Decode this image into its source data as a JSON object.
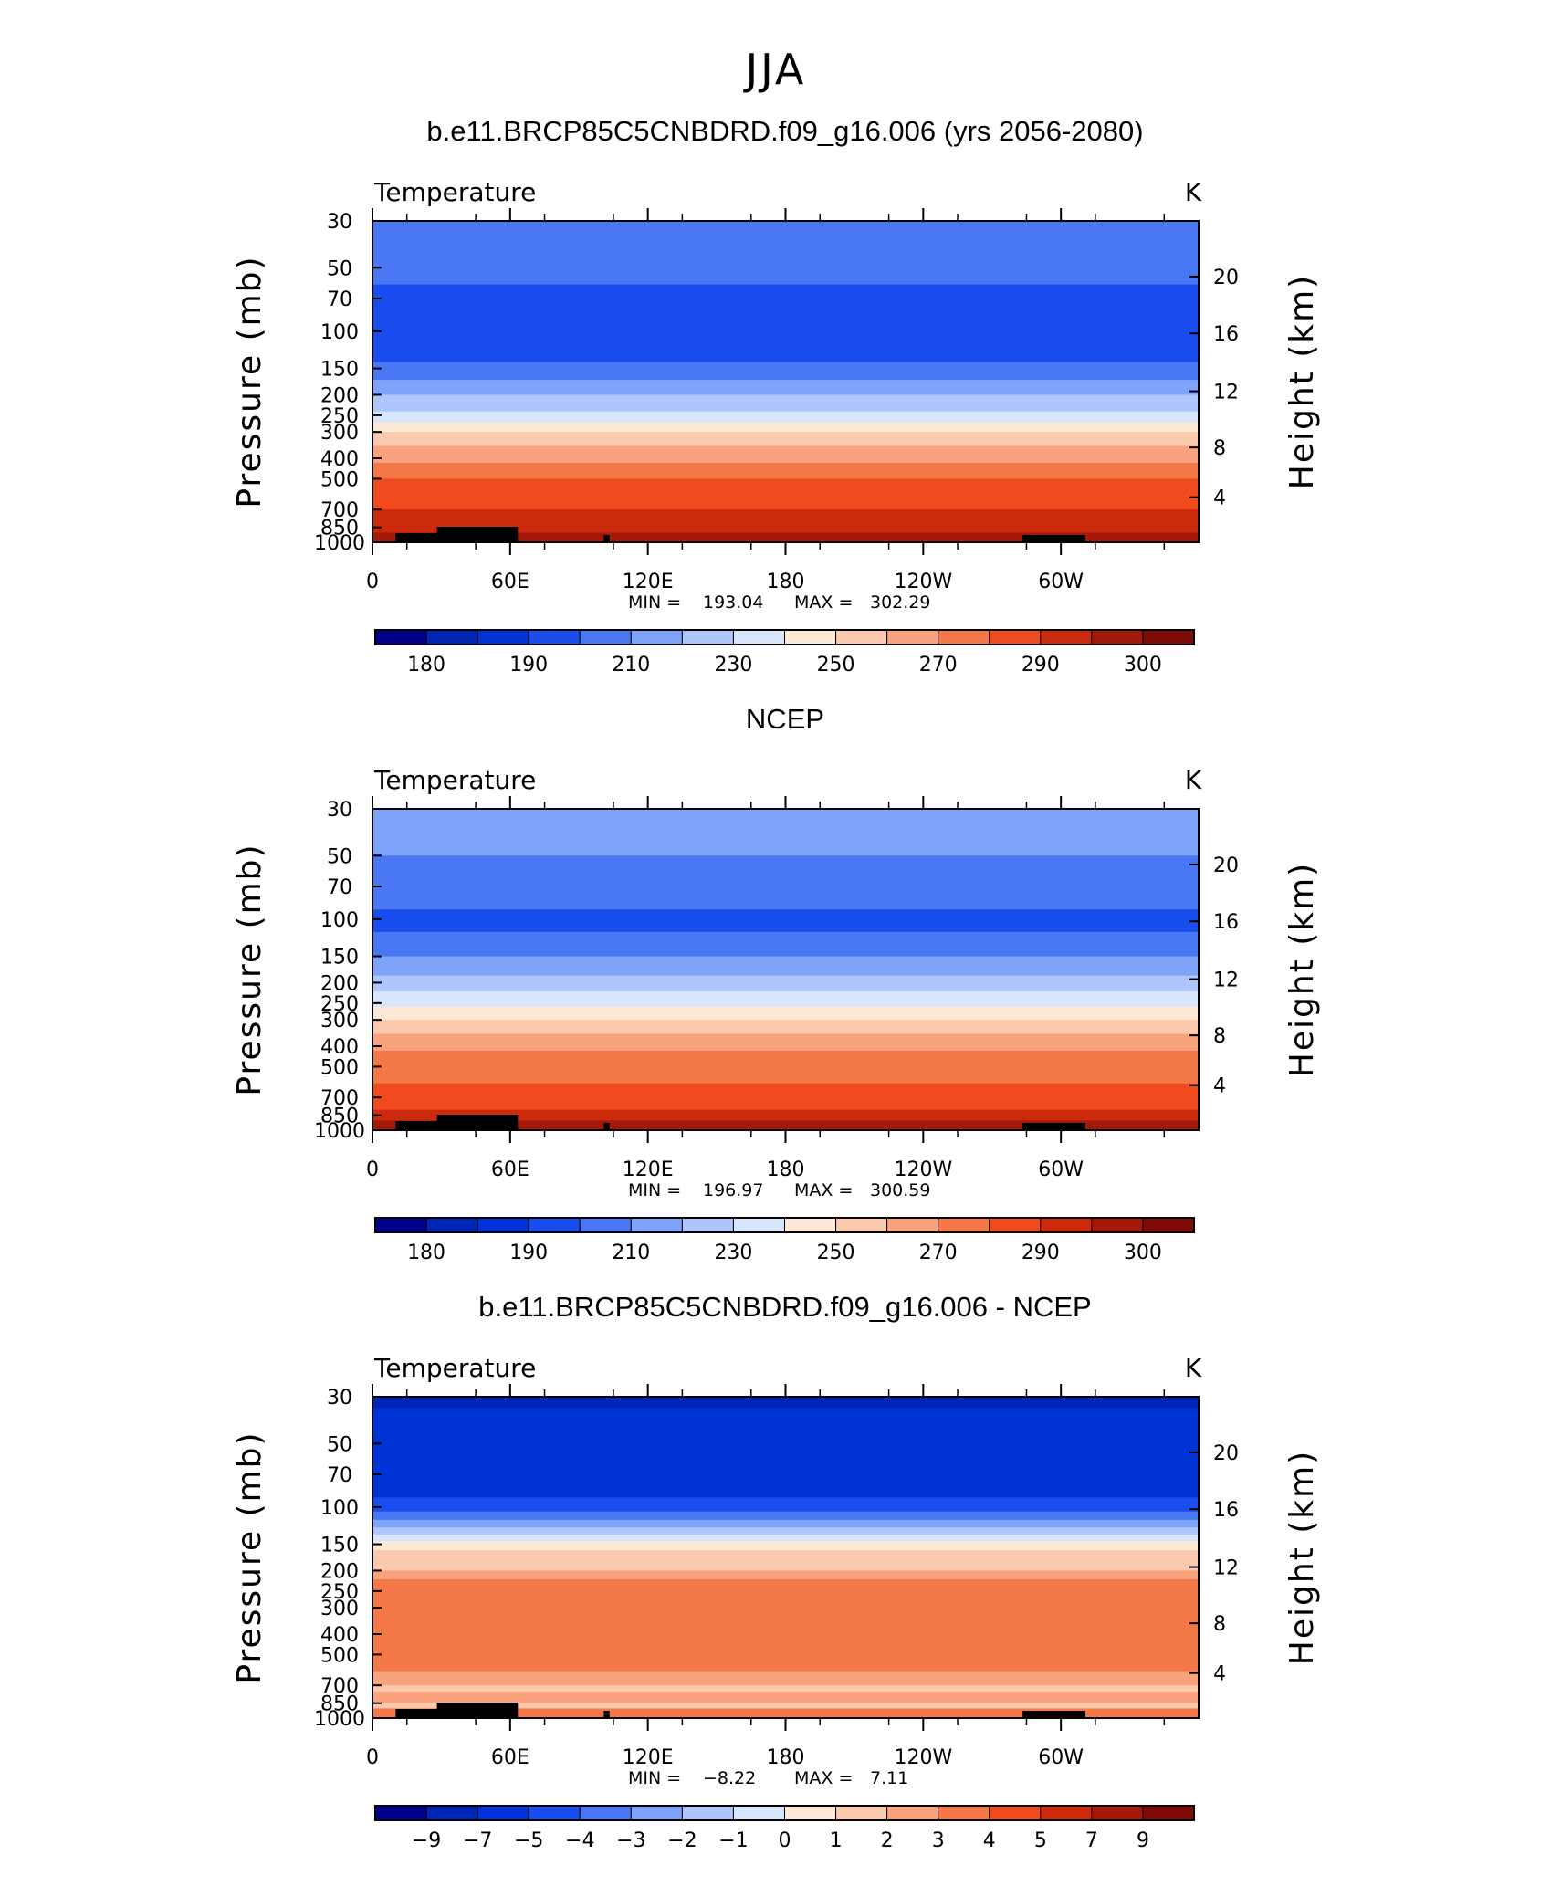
{
  "page": {
    "title": "JJA"
  },
  "chart_data": [
    {
      "type": "heatmap",
      "title": "b.e11.BRCP85C5CNBDRD.f09_g16.006 (yrs 2056-2080)",
      "variable": "Temperature",
      "units": "K",
      "ylabel": "Pressure (mb)",
      "ylabel_right": "Height (km)",
      "pressure_ticks": [
        "30",
        "50",
        "70",
        "100",
        "150",
        "200",
        "250",
        "300",
        "400",
        "500",
        "700",
        "850",
        "1000"
      ],
      "height_ticks": [
        "20",
        "16",
        "12",
        "8",
        "4"
      ],
      "lon_ticks": [
        "0",
        "60E",
        "120E",
        "180",
        "120W",
        "60W"
      ],
      "stats": {
        "min_label": "MIN =",
        "min": "193.04",
        "max_label": "MAX =",
        "max": "302.29"
      },
      "levels": [
        "180",
        "190",
        "210",
        "230",
        "250",
        "270",
        "290",
        "300"
      ],
      "palette": [
        "#00008b",
        "#0024b3",
        "#0033d6",
        "#1a4dee",
        "#4a78f5",
        "#7fa3fa",
        "#aec6fb",
        "#d7e6fc",
        "#fde9d6",
        "#fbc9ad",
        "#f8a27e",
        "#f57849",
        "#f04b1e",
        "#cc2a0c",
        "#a31a0a",
        "#7e0b08"
      ],
      "band_levels": [
        30,
        60,
        110,
        140,
        170,
        200,
        240,
        270,
        300,
        350,
        420,
        500,
        600,
        700,
        800,
        900,
        1000
      ],
      "band_colors": [
        4,
        3,
        3,
        4,
        5,
        6,
        7,
        8,
        9,
        10,
        11,
        12,
        12,
        13,
        13,
        14
      ]
    },
    {
      "type": "heatmap",
      "title": "NCEP",
      "variable": "Temperature",
      "units": "K",
      "ylabel": "Pressure (mb)",
      "ylabel_right": "Height (km)",
      "pressure_ticks": [
        "30",
        "50",
        "70",
        "100",
        "150",
        "200",
        "250",
        "300",
        "400",
        "500",
        "700",
        "850",
        "1000"
      ],
      "height_ticks": [
        "20",
        "16",
        "12",
        "8",
        "4"
      ],
      "lon_ticks": [
        "0",
        "60E",
        "120E",
        "180",
        "120W",
        "60W"
      ],
      "stats": {
        "min_label": "MIN =",
        "min": "196.97",
        "max_label": "MAX =",
        "max": "300.59"
      },
      "levels": [
        "180",
        "190",
        "210",
        "230",
        "250",
        "270",
        "290",
        "300"
      ],
      "palette": [
        "#00008b",
        "#0024b3",
        "#0033d6",
        "#1a4dee",
        "#4a78f5",
        "#7fa3fa",
        "#aec6fb",
        "#d7e6fc",
        "#fde9d6",
        "#fbc9ad",
        "#f8a27e",
        "#f57849",
        "#f04b1e",
        "#cc2a0c",
        "#a31a0a",
        "#7e0b08"
      ],
      "band_levels": [
        30,
        50,
        90,
        115,
        150,
        185,
        220,
        260,
        300,
        350,
        420,
        500,
        600,
        700,
        800,
        900,
        1000
      ],
      "band_colors": [
        5,
        4,
        3,
        4,
        5,
        6,
        7,
        8,
        9,
        10,
        11,
        11,
        12,
        12,
        13,
        14
      ]
    },
    {
      "type": "heatmap",
      "title": "b.e11.BRCP85C5CNBDRD.f09_g16.006 - NCEP",
      "variable": "Temperature",
      "units": "K",
      "ylabel": "Pressure (mb)",
      "ylabel_right": "Height (km)",
      "pressure_ticks": [
        "30",
        "50",
        "70",
        "100",
        "150",
        "200",
        "250",
        "300",
        "400",
        "500",
        "700",
        "850",
        "1000"
      ],
      "height_ticks": [
        "20",
        "16",
        "12",
        "8",
        "4"
      ],
      "lon_ticks": [
        "0",
        "60E",
        "120E",
        "180",
        "120W",
        "60W"
      ],
      "stats": {
        "min_label": "MIN =",
        "min": "−8.22",
        "max_label": "MAX =",
        "max": "7.11"
      },
      "levels": [
        "−9",
        "−7",
        "−5",
        "−4",
        "−3",
        "−2",
        "−1",
        "0",
        "1",
        "2",
        "3",
        "4",
        "5",
        "7",
        "9"
      ],
      "palette": [
        "#00008b",
        "#0024b3",
        "#0033d6",
        "#1a4dee",
        "#4a78f5",
        "#7fa3fa",
        "#aec6fb",
        "#d7e6fc",
        "#fde9d6",
        "#fbc9ad",
        "#f8a27e",
        "#f57849",
        "#f04b1e",
        "#cc2a0c",
        "#a31a0a",
        "#7e0b08"
      ],
      "band_levels": [
        30,
        34,
        90,
        105,
        115,
        125,
        135,
        145,
        160,
        200,
        220,
        500,
        600,
        700,
        750,
        850,
        900,
        1000
      ],
      "band_colors": [
        1,
        2,
        3,
        4,
        5,
        6,
        7,
        8,
        9,
        10,
        11,
        11,
        10,
        9,
        10,
        9,
        11
      ]
    }
  ]
}
